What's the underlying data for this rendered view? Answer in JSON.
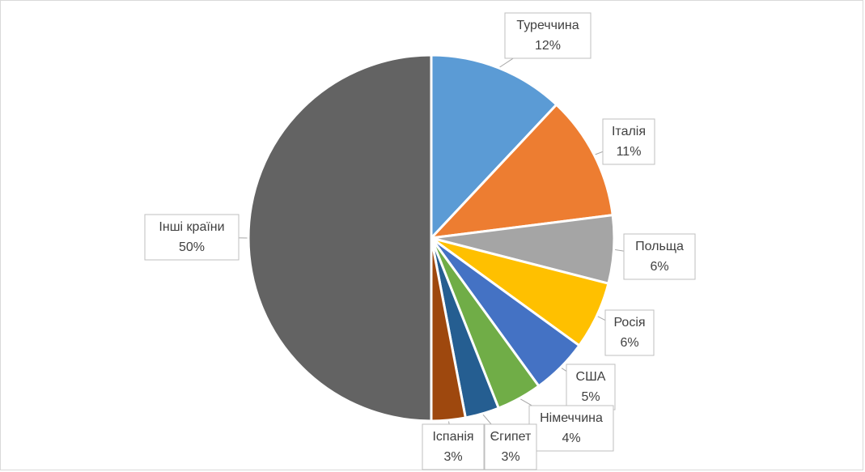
{
  "chart_data": {
    "type": "pie",
    "categories": [
      "Туреччина",
      "Італія",
      "Польща",
      "Росія",
      "США",
      "Німеччина",
      "Єгипет",
      "Іспанія",
      "Інші країни"
    ],
    "values": [
      12,
      11,
      6,
      6,
      5,
      4,
      3,
      3,
      50
    ],
    "value_labels": [
      "12%",
      "11%",
      "6%",
      "6%",
      "5%",
      "4%",
      "3%",
      "3%",
      "50%"
    ],
    "colors": [
      "#5b9bd5",
      "#ed7d31",
      "#a5a5a5",
      "#ffc000",
      "#4472c4",
      "#70ad47",
      "#255e91",
      "#9e480e",
      "#636363"
    ]
  }
}
